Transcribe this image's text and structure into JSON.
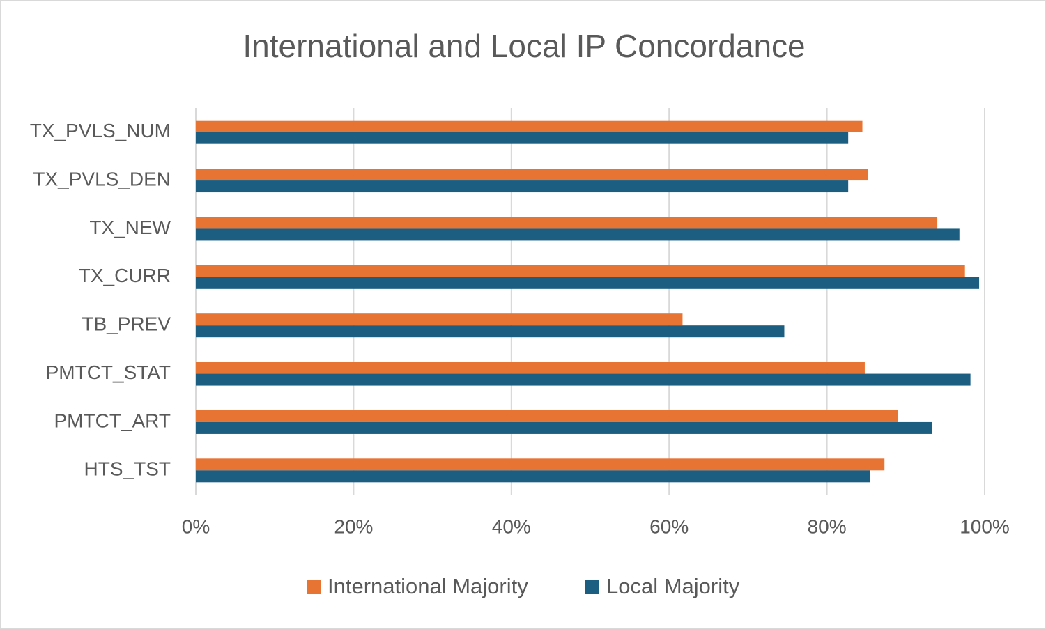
{
  "chart_data": {
    "type": "bar",
    "orientation": "horizontal",
    "title": "International and Local IP Concordance",
    "categories": [
      "TX_PVLS_NUM",
      "TX_PVLS_DEN",
      "TX_NEW",
      "TX_CURR",
      "TB_PREV",
      "PMTCT_STAT",
      "PMTCT_ART",
      "HTS_TST"
    ],
    "series": [
      {
        "name": "International Majority",
        "color": "#e87434",
        "values": [
          84.5,
          85.2,
          94.0,
          97.5,
          61.7,
          84.8,
          89.0,
          87.3
        ]
      },
      {
        "name": "Local Majority",
        "color": "#1b5e82",
        "values": [
          82.7,
          82.7,
          96.8,
          99.3,
          74.6,
          98.2,
          93.3,
          85.5
        ]
      }
    ],
    "xlim": [
      0,
      100
    ],
    "xticks": [
      {
        "value": 0,
        "label": "0%"
      },
      {
        "value": 20,
        "label": "20%"
      },
      {
        "value": 40,
        "label": "40%"
      },
      {
        "value": 60,
        "label": "60%"
      },
      {
        "value": 80,
        "label": "80%"
      },
      {
        "value": 100,
        "label": "100%"
      }
    ],
    "grid": true,
    "legend": "bottom"
  }
}
